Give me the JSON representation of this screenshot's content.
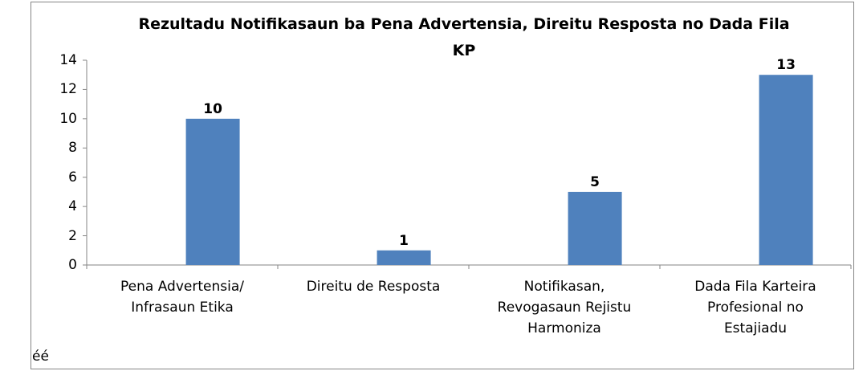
{
  "chart_data": {
    "type": "bar",
    "title": "Rezultadu Notifikasaun ba Pena Advertensia, Direitu Resposta no Dada Fila KP",
    "categories": [
      "Pena Advertensia/ Infrasaun Etika",
      "Direitu de Resposta",
      "Notifikasan, Revogasaun Rejistu Harmoniza",
      "Dada Fila Karteira Profesional no Estajiadu"
    ],
    "values": [
      10,
      1,
      5,
      13
    ],
    "color": "#4f81bd",
    "ylim": [
      0,
      14
    ],
    "yticks": [
      0,
      2,
      4,
      6,
      8,
      10,
      12,
      14
    ],
    "grid": false,
    "data_labels": true
  },
  "footnote": "éé"
}
